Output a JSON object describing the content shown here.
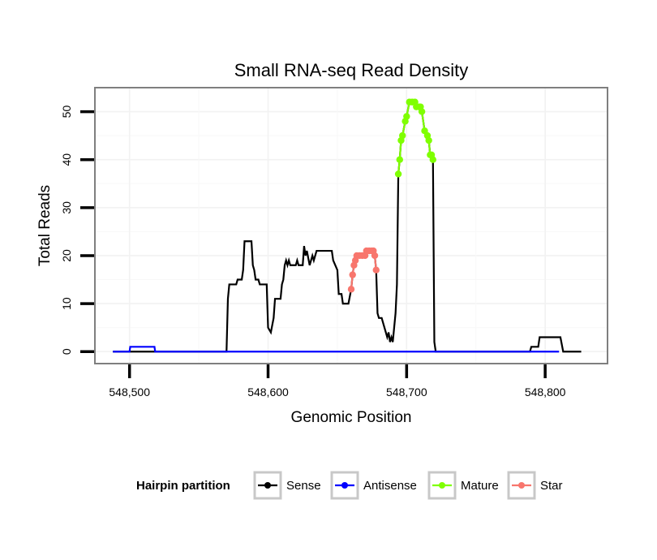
{
  "chart_data": {
    "type": "line",
    "title": "Small RNA-seq Read Density",
    "xlabel": "Genomic Position",
    "ylabel": "Total Reads",
    "xlim": [
      548475,
      548845
    ],
    "ylim": [
      -2.5,
      55
    ],
    "x_ticks": [
      548500,
      548600,
      548700,
      548800
    ],
    "x_tick_labels": [
      "548,500",
      "548,600",
      "548,700",
      "548,800"
    ],
    "y_ticks": [
      0,
      10,
      20,
      30,
      40,
      50
    ],
    "y_tick_labels": [
      "0",
      "10",
      "20",
      "30",
      "40",
      "50"
    ],
    "grid": true,
    "legend": {
      "title": "Hairpin partition",
      "position": "bottom",
      "entries": [
        "Sense",
        "Antisense",
        "Mature",
        "Star"
      ]
    },
    "series": [
      {
        "name": "Sense",
        "color": "#000000",
        "style": "line",
        "points": [
          [
            548488,
            0
          ],
          [
            548570,
            0
          ],
          [
            548571,
            11
          ],
          [
            548572,
            14
          ],
          [
            548577,
            14
          ],
          [
            548578,
            15
          ],
          [
            548581,
            15
          ],
          [
            548582,
            17
          ],
          [
            548583,
            23
          ],
          [
            548588,
            23
          ],
          [
            548589,
            18
          ],
          [
            548590,
            17
          ],
          [
            548591,
            15
          ],
          [
            548593,
            15
          ],
          [
            548594,
            14
          ],
          [
            548599,
            14
          ],
          [
            548600,
            5
          ],
          [
            548602,
            4
          ],
          [
            548604,
            7
          ],
          [
            548605,
            11
          ],
          [
            548609,
            11
          ],
          [
            548610,
            14
          ],
          [
            548611,
            15
          ],
          [
            548612,
            18
          ],
          [
            548613,
            19
          ],
          [
            548614,
            18
          ],
          [
            548615,
            19
          ],
          [
            548616,
            18
          ],
          [
            548620,
            18
          ],
          [
            548621,
            19
          ],
          [
            548622,
            18
          ],
          [
            548625,
            18
          ],
          [
            548626,
            22
          ],
          [
            548627,
            20
          ],
          [
            548628,
            21
          ],
          [
            548630,
            18
          ],
          [
            548632,
            20
          ],
          [
            548633,
            19
          ],
          [
            548635,
            21
          ],
          [
            548646,
            21
          ],
          [
            548647,
            19
          ],
          [
            548650,
            17
          ],
          [
            548651,
            12
          ],
          [
            548653,
            12
          ],
          [
            548654,
            10
          ],
          [
            548658,
            10
          ],
          [
            548660,
            13
          ],
          [
            548661,
            16
          ],
          [
            548662,
            18
          ],
          [
            548663,
            19
          ],
          [
            548664,
            20
          ],
          [
            548670,
            20
          ],
          [
            548671,
            21
          ],
          [
            548676,
            21
          ],
          [
            548677,
            20
          ],
          [
            548678,
            17
          ],
          [
            548679,
            8
          ],
          [
            548680,
            7
          ],
          [
            548682,
            7
          ],
          [
            548684,
            5
          ],
          [
            548686,
            3
          ],
          [
            548687,
            4
          ],
          [
            548688,
            2
          ],
          [
            548689,
            3
          ],
          [
            548690,
            2
          ],
          [
            548692,
            8
          ],
          [
            548693,
            14
          ],
          [
            548694,
            37
          ],
          [
            548695,
            40
          ],
          [
            548696,
            44
          ],
          [
            548697,
            45
          ],
          [
            548699,
            48
          ],
          [
            548700,
            49
          ],
          [
            548702,
            52
          ],
          [
            548706,
            52
          ],
          [
            548707,
            51
          ],
          [
            548710,
            51
          ],
          [
            548711,
            50
          ],
          [
            548713,
            46
          ],
          [
            548715,
            45
          ],
          [
            548716,
            44
          ],
          [
            548717,
            41
          ],
          [
            548719,
            40
          ],
          [
            548720,
            2
          ],
          [
            548721,
            0
          ],
          [
            548789,
            0
          ],
          [
            548790,
            1
          ],
          [
            548795,
            1
          ],
          [
            548796,
            3
          ],
          [
            548811,
            3
          ],
          [
            548813,
            0
          ],
          [
            548826,
            0
          ]
        ]
      },
      {
        "name": "Antisense",
        "color": "#0000ff",
        "style": "line",
        "points": [
          [
            548488,
            0
          ],
          [
            548500,
            0
          ],
          [
            548500.5,
            1
          ],
          [
            548518,
            1
          ],
          [
            548518.5,
            0
          ],
          [
            548810,
            0
          ]
        ]
      },
      {
        "name": "Mature",
        "color": "#7fff00",
        "style": "line+points",
        "points": [
          [
            548694,
            37
          ],
          [
            548695,
            40
          ],
          [
            548696,
            44
          ],
          [
            548697,
            45
          ],
          [
            548699,
            48
          ],
          [
            548700,
            49
          ],
          [
            548702,
            52
          ],
          [
            548704,
            52
          ],
          [
            548706,
            52
          ],
          [
            548707,
            51
          ],
          [
            548709,
            51
          ],
          [
            548710,
            51
          ],
          [
            548711,
            50
          ],
          [
            548713,
            46
          ],
          [
            548715,
            45
          ],
          [
            548716,
            44
          ],
          [
            548717,
            41
          ],
          [
            548718,
            41
          ],
          [
            548719,
            40
          ]
        ]
      },
      {
        "name": "Star",
        "color": "#f8766d",
        "style": "line+points",
        "points": [
          [
            548660,
            13
          ],
          [
            548661,
            16
          ],
          [
            548662,
            18
          ],
          [
            548663,
            19
          ],
          [
            548664,
            20
          ],
          [
            548666,
            20
          ],
          [
            548668,
            20
          ],
          [
            548670,
            20
          ],
          [
            548671,
            21
          ],
          [
            548673,
            21
          ],
          [
            548675,
            21
          ],
          [
            548676,
            21
          ],
          [
            548677,
            20
          ],
          [
            548678,
            17
          ]
        ]
      }
    ]
  }
}
